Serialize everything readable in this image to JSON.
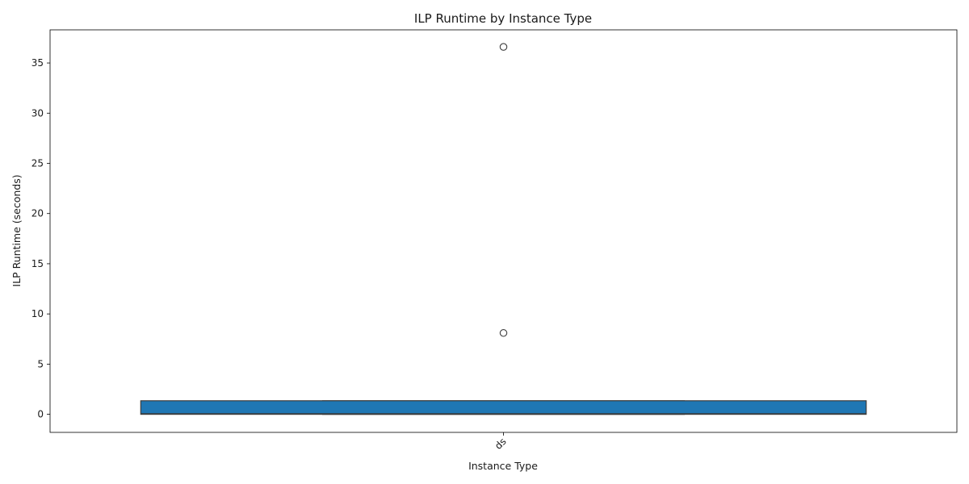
{
  "chart_data": {
    "type": "box",
    "title": "ILP Runtime by Instance Type",
    "xlabel": "Instance Type",
    "ylabel": "ILP Runtime (seconds)",
    "categories": [
      "ds"
    ],
    "yticks": [
      0,
      5,
      10,
      15,
      20,
      25,
      30,
      35
    ],
    "ylim": [
      -1.8,
      38.3
    ],
    "boxes": [
      {
        "category": "ds",
        "min": 0.0,
        "q1": 0.0,
        "median": 0.05,
        "q3": 1.35,
        "max": 1.35,
        "outliers": [
          8.1,
          36.6
        ]
      }
    ],
    "box_color": "#1f77b4",
    "grid": false,
    "legend": "none"
  }
}
